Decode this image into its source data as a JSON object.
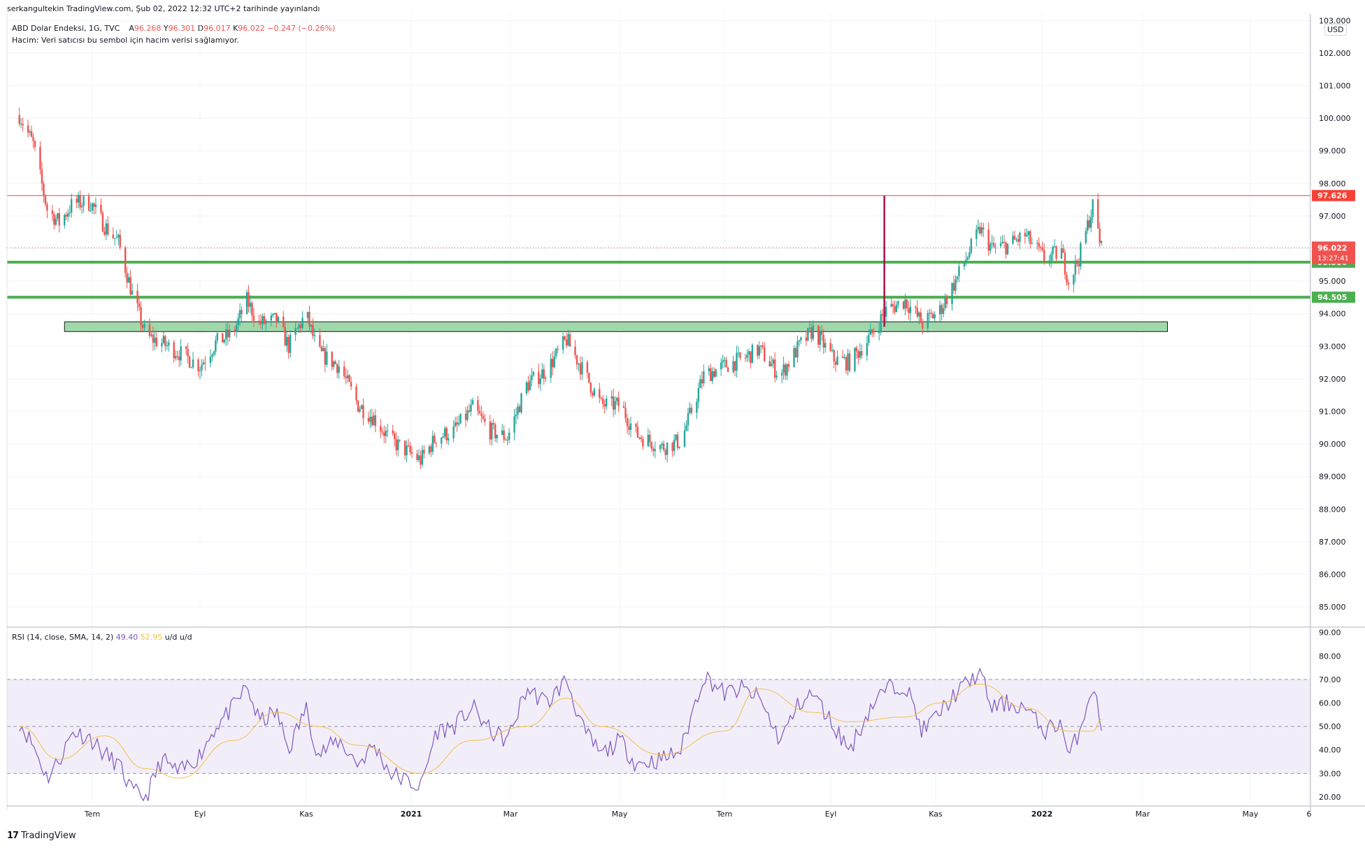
{
  "header": {
    "published": "serkangultekin TradingView.com, Şub 02, 2022 12:32 UTC+2 tarihinde yayınlandı",
    "symbol": "ABD Dolar Endeksi, 1G, TVC",
    "ohlc": {
      "a_label": "A",
      "a": "96.268",
      "y_label": "Y",
      "y": "96.301",
      "d_label": "D",
      "d": "96.017",
      "k_label": "K",
      "k": "96.022",
      "change": "−0.247 (−0.26%)"
    },
    "volume_note": "Hacim: Veri satıcısı bu sembol için hacim verisi sağlamıyor."
  },
  "currency": "USD",
  "branding": {
    "name": "TradingView",
    "mark": "17"
  },
  "colors": {
    "up": "#26a69a",
    "down": "#ef5350",
    "resistance": "#f44336",
    "support": "#4caf50",
    "zone": "#8fd19e",
    "rsi": "#7e57c2",
    "rsi_ma": "#f5c04a",
    "rsi_band": "#ede7f6",
    "marker": "#a4134a"
  },
  "chart_data": [
    {
      "type": "candlestick",
      "x_ticks": [
        "Tem",
        "Eyl",
        "Kas",
        "2021",
        "Mar",
        "May",
        "Tem",
        "Eyl",
        "Kas",
        "2022",
        "Mar",
        "May",
        "6"
      ],
      "y_ticks": [
        "85.000",
        "86.000",
        "87.000",
        "88.000",
        "89.000",
        "90.000",
        "91.000",
        "92.000",
        "93.000",
        "94.000",
        "95.000",
        "96.000",
        "97.000",
        "98.000",
        "99.000",
        "100.000",
        "101.000",
        "102.000",
        "103.000"
      ],
      "ylim": [
        84.4,
        103.2
      ],
      "path_close": [
        [
          "2020-05-20",
          100.1
        ],
        [
          "2020-05-28",
          99.2
        ],
        [
          "2020-06-05",
          97.2
        ],
        [
          "2020-06-12",
          96.8
        ],
        [
          "2020-06-20",
          97.4
        ],
        [
          "2020-06-30",
          97.4
        ],
        [
          "2020-07-08",
          96.7
        ],
        [
          "2020-07-16",
          96.2
        ],
        [
          "2020-07-24",
          94.6
        ],
        [
          "2020-08-01",
          93.3
        ],
        [
          "2020-08-10",
          93.1
        ],
        [
          "2020-08-20",
          92.8
        ],
        [
          "2020-09-01",
          92.4
        ],
        [
          "2020-09-10",
          93.1
        ],
        [
          "2020-09-20",
          93.4
        ],
        [
          "2020-09-28",
          94.4
        ],
        [
          "2020-10-05",
          93.7
        ],
        [
          "2020-10-15",
          93.8
        ],
        [
          "2020-10-22",
          93.0
        ],
        [
          "2020-11-01",
          94.0
        ],
        [
          "2020-11-08",
          92.8
        ],
        [
          "2020-11-20",
          92.4
        ],
        [
          "2020-12-01",
          91.2
        ],
        [
          "2020-12-10",
          90.8
        ],
        [
          "2020-12-20",
          90.1
        ],
        [
          "2021-01-06",
          89.5
        ],
        [
          "2021-01-15",
          90.2
        ],
        [
          "2021-01-25",
          90.4
        ],
        [
          "2021-02-05",
          91.1
        ],
        [
          "2021-02-15",
          90.4
        ],
        [
          "2021-02-25",
          90.2
        ],
        [
          "2021-03-08",
          91.8
        ],
        [
          "2021-03-20",
          92.3
        ],
        [
          "2021-03-31",
          93.2
        ],
        [
          "2021-04-10",
          92.2
        ],
        [
          "2021-04-20",
          91.2
        ],
        [
          "2021-05-01",
          91.2
        ],
        [
          "2021-05-10",
          90.3
        ],
        [
          "2021-05-25",
          89.9
        ],
        [
          "2021-06-05",
          90.1
        ],
        [
          "2021-06-18",
          92.1
        ],
        [
          "2021-06-30",
          92.4
        ],
        [
          "2021-07-10",
          92.6
        ],
        [
          "2021-07-20",
          92.9
        ],
        [
          "2021-08-01",
          92.1
        ],
        [
          "2021-08-12",
          93.0
        ],
        [
          "2021-08-20",
          93.5
        ],
        [
          "2021-09-01",
          92.6
        ],
        [
          "2021-09-10",
          92.5
        ],
        [
          "2021-09-22",
          93.3
        ],
        [
          "2021-10-01",
          94.1
        ],
        [
          "2021-10-12",
          94.4
        ],
        [
          "2021-10-22",
          93.7
        ],
        [
          "2021-11-01",
          94.1
        ],
        [
          "2021-11-10",
          95.0
        ],
        [
          "2021-11-24",
          96.6
        ],
        [
          "2021-12-01",
          96.0
        ],
        [
          "2021-12-10",
          96.1
        ],
        [
          "2021-12-20",
          96.4
        ],
        [
          "2021-12-31",
          95.7
        ],
        [
          "2022-01-10",
          95.9
        ],
        [
          "2022-01-14",
          95.0
        ],
        [
          "2022-01-20",
          95.7
        ],
        [
          "2022-01-28",
          97.3
        ],
        [
          "2022-02-02",
          96.0
        ]
      ],
      "horizontal_lines": [
        {
          "price": 97.626,
          "label": "97.626",
          "color": "#f44336"
        },
        {
          "price": 95.58,
          "label": "95.580",
          "color": "#4caf50"
        },
        {
          "price": 94.505,
          "label": "94.505",
          "color": "#4caf50"
        }
      ],
      "last_price": {
        "price": 96.022,
        "label": "96.022",
        "countdown": "13:27:41"
      },
      "zone": {
        "from": "2020-06-15",
        "to": "2022-03-12",
        "low": 93.45,
        "high": 93.75
      },
      "vertical_marker": {
        "date": "2021-09-30",
        "from": 93.6,
        "to": 97.62
      }
    },
    {
      "type": "line",
      "legend": {
        "name": "RSI (14, close, SMA, 14, 2)",
        "rsi": "49.40",
        "ma": "52.95",
        "ud1": "u/d",
        "ud2": "u/d"
      },
      "y_ticks": [
        "20.00",
        "30.00",
        "40.00",
        "50.00",
        "60.00",
        "70.00",
        "80.00",
        "90.00"
      ],
      "ylim": [
        17,
        92
      ],
      "bands": [
        30,
        50,
        70
      ],
      "rsi_series": [
        [
          "2020-05-20",
          52
        ],
        [
          "2020-05-28",
          42
        ],
        [
          "2020-06-05",
          28
        ],
        [
          "2020-06-12",
          36
        ],
        [
          "2020-06-20",
          48
        ],
        [
          "2020-06-30",
          45
        ],
        [
          "2020-07-08",
          38
        ],
        [
          "2020-07-16",
          34
        ],
        [
          "2020-07-24",
          22
        ],
        [
          "2020-08-01",
          20
        ],
        [
          "2020-08-10",
          36
        ],
        [
          "2020-08-20",
          30
        ],
        [
          "2020-09-01",
          38
        ],
        [
          "2020-09-10",
          50
        ],
        [
          "2020-09-20",
          58
        ],
        [
          "2020-09-28",
          67
        ],
        [
          "2020-10-05",
          52
        ],
        [
          "2020-10-15",
          56
        ],
        [
          "2020-10-22",
          40
        ],
        [
          "2020-11-01",
          58
        ],
        [
          "2020-11-08",
          38
        ],
        [
          "2020-11-20",
          44
        ],
        [
          "2020-12-01",
          34
        ],
        [
          "2020-12-10",
          42
        ],
        [
          "2020-12-20",
          30
        ],
        [
          "2021-01-06",
          24
        ],
        [
          "2021-01-15",
          48
        ],
        [
          "2021-01-25",
          50
        ],
        [
          "2021-02-05",
          58
        ],
        [
          "2021-02-15",
          48
        ],
        [
          "2021-02-25",
          44
        ],
        [
          "2021-03-08",
          66
        ],
        [
          "2021-03-20",
          60
        ],
        [
          "2021-03-31",
          70
        ],
        [
          "2021-04-10",
          48
        ],
        [
          "2021-04-20",
          38
        ],
        [
          "2021-05-01",
          44
        ],
        [
          "2021-05-10",
          34
        ],
        [
          "2021-05-25",
          36
        ],
        [
          "2021-06-05",
          40
        ],
        [
          "2021-06-18",
          72
        ],
        [
          "2021-06-30",
          64
        ],
        [
          "2021-07-10",
          66
        ],
        [
          "2021-07-20",
          62
        ],
        [
          "2021-08-01",
          44
        ],
        [
          "2021-08-12",
          60
        ],
        [
          "2021-08-20",
          64
        ],
        [
          "2021-09-01",
          50
        ],
        [
          "2021-09-10",
          40
        ],
        [
          "2021-09-22",
          58
        ],
        [
          "2021-10-01",
          66
        ],
        [
          "2021-10-12",
          68
        ],
        [
          "2021-10-22",
          48
        ],
        [
          "2021-11-01",
          56
        ],
        [
          "2021-11-10",
          64
        ],
        [
          "2021-11-24",
          73
        ],
        [
          "2021-12-01",
          58
        ],
        [
          "2021-12-10",
          60
        ],
        [
          "2021-12-20",
          58
        ],
        [
          "2021-12-31",
          48
        ],
        [
          "2022-01-10",
          52
        ],
        [
          "2022-01-14",
          36
        ],
        [
          "2022-01-20",
          48
        ],
        [
          "2022-01-28",
          68
        ],
        [
          "2022-02-02",
          49.4
        ]
      ],
      "ma_series": [
        [
          "2020-05-20",
          50
        ],
        [
          "2020-06-12",
          36
        ],
        [
          "2020-07-08",
          46
        ],
        [
          "2020-08-01",
          32
        ],
        [
          "2020-08-20",
          28
        ],
        [
          "2020-09-20",
          44
        ],
        [
          "2020-10-15",
          56
        ],
        [
          "2020-11-08",
          50
        ],
        [
          "2020-12-01",
          42
        ],
        [
          "2021-01-06",
          30
        ],
        [
          "2021-02-05",
          44
        ],
        [
          "2021-03-08",
          50
        ],
        [
          "2021-03-31",
          62
        ],
        [
          "2021-04-20",
          50
        ],
        [
          "2021-05-25",
          38
        ],
        [
          "2021-06-30",
          48
        ],
        [
          "2021-07-20",
          66
        ],
        [
          "2021-08-20",
          56
        ],
        [
          "2021-09-10",
          52
        ],
        [
          "2021-10-12",
          54
        ],
        [
          "2021-11-01",
          60
        ],
        [
          "2021-11-24",
          68
        ],
        [
          "2021-12-20",
          58
        ],
        [
          "2022-01-14",
          48
        ],
        [
          "2022-01-28",
          48
        ],
        [
          "2022-02-02",
          52.95
        ]
      ]
    }
  ]
}
